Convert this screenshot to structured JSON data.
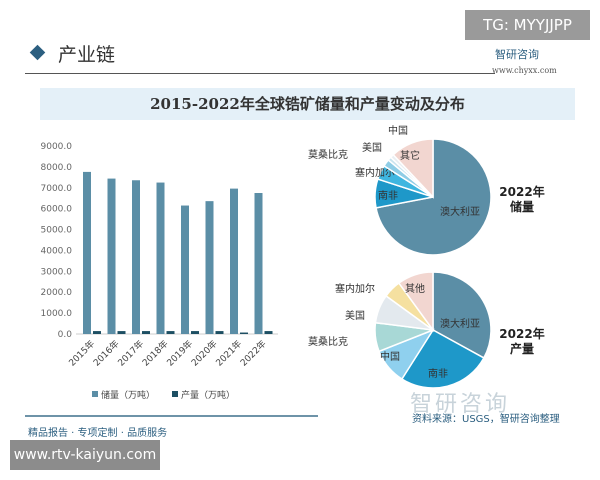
{
  "watermark_top": "TG: MYYJJPP",
  "watermark_bottom": "www.rtv-kaiyun.com",
  "header": {
    "title": "产业链",
    "logo": "智研咨询",
    "url": "www.chyxx.com"
  },
  "footer": {
    "slogan": "精品报告 · 专项定制 · 品质服务",
    "source": "资料来源：USGS，智研咨询整理",
    "logo_watermark": "智研咨询"
  },
  "colors": {
    "reserve": "#5b8ea6",
    "production": "#1d4f63"
  },
  "chart_data": [
    {
      "type": "bar",
      "title": "2015-2022年全球锆矿储量和产量变动及分布",
      "categories": [
        "2015年",
        "2016年",
        "2017年",
        "2018年",
        "2019年",
        "2020年",
        "2021年",
        "2022年"
      ],
      "series": [
        {
          "name": "储量（万吨）",
          "values": [
            7760,
            7440,
            7360,
            7250,
            6150,
            6360,
            6960,
            6750
          ]
        },
        {
          "name": "产量（万吨）",
          "values": [
            140,
            140,
            140,
            140,
            140,
            140,
            70,
            140
          ]
        }
      ],
      "yticks": [
        "0.0",
        "1000.0",
        "2000.0",
        "3000.0",
        "4000.0",
        "5000.0",
        "6000.0",
        "7000.0",
        "8000.0",
        "9000.0"
      ],
      "ylim": [
        0,
        9000
      ],
      "legend": "bottom",
      "grid": false
    },
    {
      "type": "pie",
      "label": "2022年储量",
      "slices": [
        {
          "name": "澳大利亚",
          "value": 72,
          "color": "#5b8ea6"
        },
        {
          "name": "南非",
          "value": 8,
          "color": "#1e98c9"
        },
        {
          "name": "塞内加尔",
          "value": 4,
          "color": "#3fb6e0"
        },
        {
          "name": "莫桑比克",
          "value": 2,
          "color": "#8fcde6"
        },
        {
          "name": "美国",
          "value": 1,
          "color": "#c9e4ef"
        },
        {
          "name": "中国",
          "value": 1,
          "color": "#e8eef2"
        },
        {
          "name": "其它",
          "value": 12,
          "color": "#f2d6d0"
        }
      ]
    },
    {
      "type": "pie",
      "label": "2022年产量",
      "slices": [
        {
          "name": "澳大利亚",
          "value": 33,
          "color": "#5b8ea6"
        },
        {
          "name": "南非",
          "value": 26,
          "color": "#1e98c9"
        },
        {
          "name": "中国",
          "value": 10,
          "color": "#8fd0ee"
        },
        {
          "name": "莫桑比克",
          "value": 8,
          "color": "#a8d8d6"
        },
        {
          "name": "美国",
          "value": 8,
          "color": "#e3e9ee"
        },
        {
          "name": "塞内加尔",
          "value": 5,
          "color": "#f5e0a0"
        },
        {
          "name": "其他",
          "value": 10,
          "color": "#f2d6d0"
        }
      ]
    }
  ]
}
